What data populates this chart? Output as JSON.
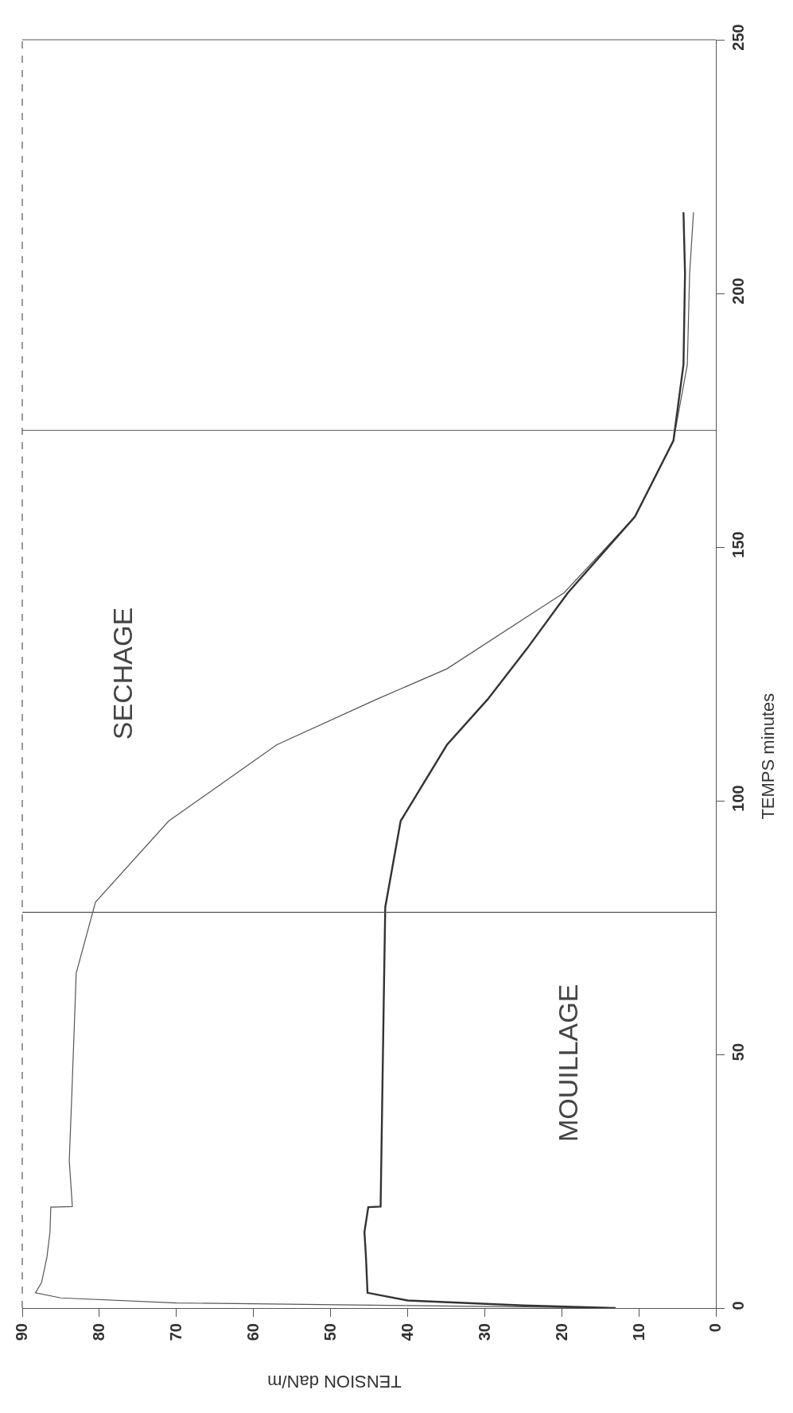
{
  "chart_data": {
    "type": "line",
    "xlabel": "TENSION daN/m",
    "ylabel": "TEMPS minutes",
    "xlim": [
      90,
      0
    ],
    "xticks": [
      90,
      80,
      70,
      60,
      50,
      40,
      30,
      20,
      10,
      0
    ],
    "ylim": [
      0,
      250
    ],
    "yticks": [
      0,
      50,
      100,
      150,
      200,
      250
    ],
    "grid": false,
    "marker": "none",
    "line_style": "solid",
    "series": [
      {
        "color": "#555555",
        "x": [
          13,
          40,
          70,
          85,
          88.3,
          87.5,
          86.8,
          86.4,
          86.3,
          83.5,
          83.9,
          83.5,
          83,
          80.5,
          71,
          57,
          44,
          34.9,
          19.7,
          10.5,
          5.5,
          3.7,
          3.4,
          2.9
        ],
        "values": [
          0,
          0.5,
          1,
          2,
          3,
          5,
          10,
          15,
          19.9,
          20,
          29,
          45,
          66,
          80,
          96,
          111,
          120,
          126,
          141,
          156,
          171,
          186,
          204,
          216
        ]
      },
      {
        "color": "#333333",
        "x": [
          13,
          25,
          40,
          45.2,
          45.4,
          45.6,
          45.1,
          43.5,
          43.3,
          43.1,
          42.9,
          40.9,
          34.9,
          29.6,
          24.5,
          19.2,
          10.5,
          5.5,
          4.2,
          4,
          4.2
        ],
        "values": [
          0,
          0.5,
          1.5,
          3,
          10,
          15,
          19.9,
          20,
          40,
          60,
          79,
          96,
          111,
          120,
          130,
          141,
          156,
          171,
          186,
          204,
          216
        ]
      }
    ],
    "ref_lines": [
      {
        "axis": "y",
        "value": 78
      },
      {
        "axis": "y",
        "value": 173
      }
    ],
    "annotations": [
      "SECHAGE",
      "MOUILLAGE"
    ]
  }
}
